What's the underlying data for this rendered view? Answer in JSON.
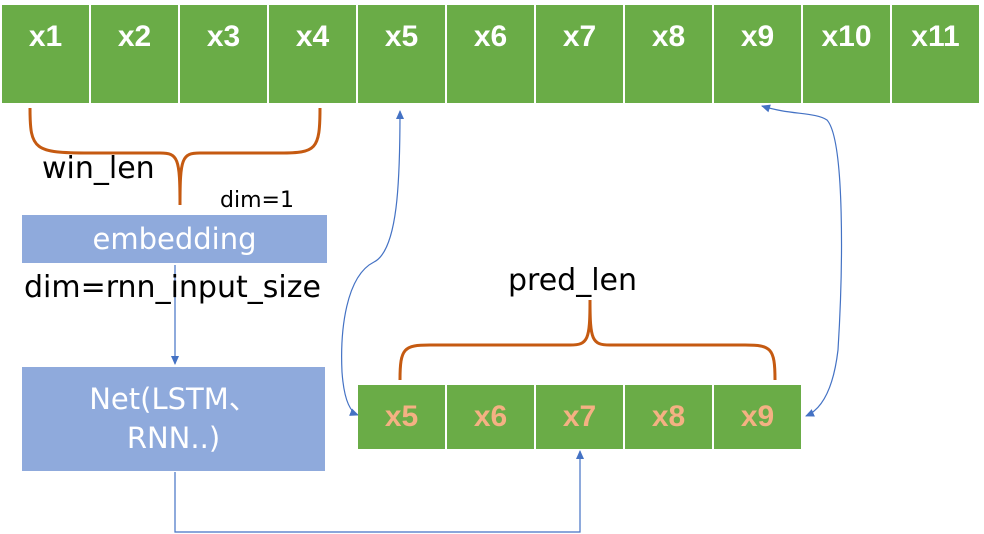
{
  "input_sequence": [
    "x1",
    "x2",
    "x3",
    "x4",
    "x5",
    "x6",
    "x7",
    "x8",
    "x9",
    "x10",
    "x11"
  ],
  "prediction_sequence": [
    "x5",
    "x6",
    "x7",
    "x8",
    "x9"
  ],
  "labels": {
    "win_len": "win_len",
    "dim_1": "dim=1",
    "dim_rnn": "dim=rnn_input_size",
    "pred_len": "pred_len"
  },
  "boxes": {
    "embedding": "embedding",
    "net_line1": "Net(LSTM、",
    "net_line2": "RNN..)"
  },
  "colors": {
    "cell_fill": "#6AAC47",
    "pred_text": "#F4B183",
    "box_fill": "#8FAADC",
    "brace": "#C55A11",
    "arrow": "#4472C4"
  }
}
